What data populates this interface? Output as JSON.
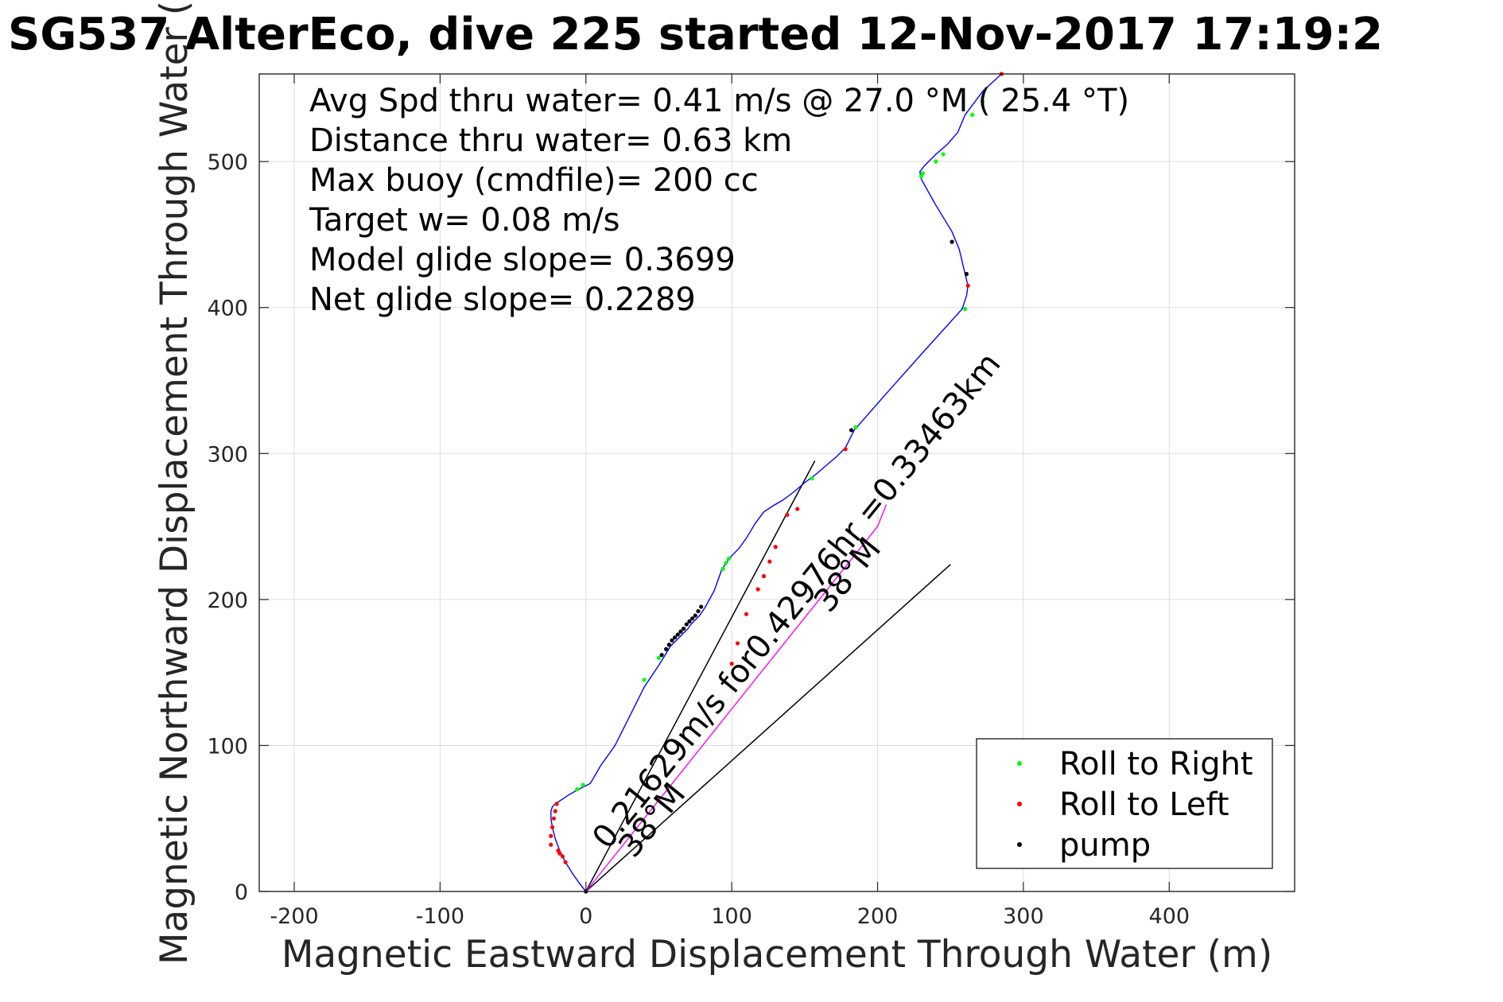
{
  "chart_data": {
    "type": "line",
    "title": "SG537 AlterEco, dive 225 started 12-Nov-2017 17:19:2",
    "xlabel": "Magnetic Eastward Displacement Through Water (m)",
    "ylabel": "Magnetic Northward Displacement Through Water (",
    "xlim": [
      -224,
      486
    ],
    "ylim": [
      0,
      560
    ],
    "xticks": [
      -200,
      -100,
      0,
      100,
      200,
      300,
      400
    ],
    "yticks": [
      0,
      100,
      200,
      300,
      400,
      500
    ],
    "grid": true,
    "info_lines": [
      "Avg Spd thru water=  0.41 m/s @  27.0 °M ( 25.4 °T)",
      "Distance thru water=  0.63 km",
      "Max buoy (cmdfile)= 200 cc",
      "Target w= 0.08 m/s",
      "Model glide slope= 0.3699",
      "Net glide slope= 0.2289"
    ],
    "series": [
      {
        "name": "dive track",
        "color": "#0000ff",
        "x": [
          0,
          -4,
          -9,
          -14,
          -18,
          -21,
          -23,
          -24,
          -24,
          -23,
          -21,
          -18,
          -12,
          -5,
          3,
          10,
          20,
          30,
          40,
          50,
          55,
          58,
          62,
          66,
          70,
          72,
          75,
          78,
          82,
          88,
          93,
          96,
          100,
          105,
          110,
          116,
          122,
          128,
          135,
          143,
          150,
          158,
          165,
          172,
          178,
          184,
          205,
          230,
          258,
          261,
          262,
          260,
          256,
          251,
          240,
          230,
          229,
          232,
          240,
          248,
          255,
          260,
          266,
          272,
          285
        ],
        "y": [
          0,
          5,
          12,
          20,
          28,
          36,
          44,
          50,
          55,
          58,
          60,
          62,
          66,
          70,
          74,
          86,
          100,
          120,
          140,
          155,
          163,
          168,
          172,
          176,
          180,
          183,
          186,
          189,
          195,
          206,
          220,
          225,
          230,
          235,
          242,
          252,
          260,
          264,
          268,
          274,
          280,
          286,
          292,
          298,
          304,
          316,
          340,
          368,
          399,
          408,
          415,
          423,
          440,
          452,
          470,
          488,
          493,
          497,
          505,
          512,
          520,
          532,
          540,
          548,
          560
        ]
      },
      {
        "name": "Roll to Right",
        "color": "#00ff00",
        "marker": ".",
        "x": [
          -2,
          -6,
          40,
          50,
          94,
          96,
          98,
          155,
          185,
          230,
          231,
          240,
          245,
          260,
          265,
          272
        ],
        "y": [
          73,
          70,
          145,
          160,
          221,
          225,
          228,
          283,
          318,
          490,
          492,
          500,
          505,
          399,
          532,
          541
        ]
      },
      {
        "name": "Roll to Left",
        "color": "#ff0000",
        "marker": ".",
        "x": [
          -24,
          -24,
          -23,
          -22,
          -21,
          -20,
          -19,
          -18,
          -16,
          -14,
          100,
          104,
          110,
          118,
          122,
          126,
          130,
          138,
          145,
          178,
          262,
          285
        ],
        "y": [
          32,
          38,
          44,
          50,
          55,
          60,
          28,
          26,
          24,
          20,
          156,
          170,
          190,
          207,
          216,
          226,
          236,
          258,
          262,
          303,
          415,
          560
        ]
      },
      {
        "name": "pump",
        "color": "#000000",
        "marker": ".",
        "x": [
          0,
          52,
          55,
          57,
          59,
          61,
          63,
          65,
          67,
          69,
          71,
          73,
          75,
          77,
          79,
          182,
          251,
          261
        ],
        "y": [
          0,
          162,
          166,
          169,
          172,
          174,
          176,
          178,
          180,
          183,
          185,
          187,
          189,
          192,
          195,
          316,
          445,
          423
        ]
      },
      {
        "name": "current track",
        "color": "#ff00ff",
        "x": [
          0,
          40,
          80,
          120,
          160,
          200,
          206
        ],
        "y": [
          0,
          50,
          100,
          150,
          200,
          250,
          265
        ]
      }
    ],
    "reference_lines": [
      {
        "name": "model glide heading",
        "x": [
          0,
          157
        ],
        "y": [
          0,
          295
        ]
      },
      {
        "name": "net glide heading",
        "x": [
          0,
          250
        ],
        "y": [
          0,
          224
        ]
      }
    ],
    "annotations": [
      {
        "text": "0.21629m/s for0.42976hr =0.33463km",
        "x": 15,
        "y": 28,
        "angle_deg": 51
      },
      {
        "text": "38°M",
        "x": 167,
        "y": 190,
        "angle_deg": 51
      },
      {
        "text": "38°M",
        "x": 33,
        "y": 22,
        "angle_deg": 51
      }
    ],
    "legend": {
      "position": "bottom-right",
      "entries": [
        {
          "label": "Roll to Right",
          "color": "#00ff00"
        },
        {
          "label": "Roll to Left",
          "color": "#ff0000"
        },
        {
          "label": "pump",
          "color": "#000000"
        }
      ]
    }
  }
}
